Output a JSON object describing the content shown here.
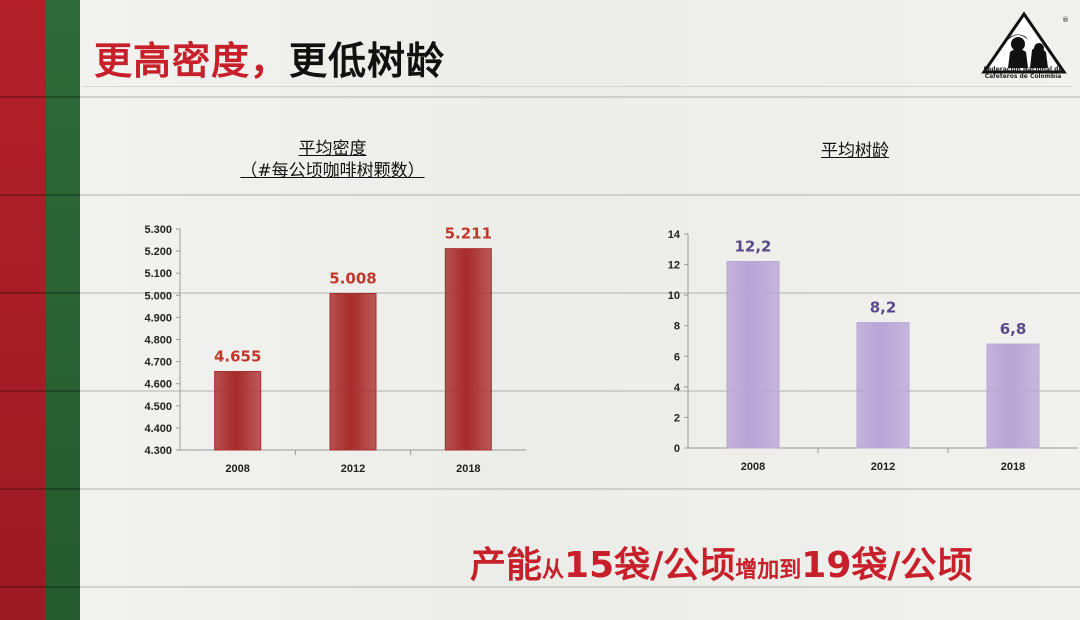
{
  "slide": {
    "title_red": "更高密度，",
    "title_black": "更低树龄",
    "logo_text_line1": "Federación Nacional de",
    "logo_text_line2": "Cafeteros de Colombia",
    "logo_mark": "®",
    "colors": {
      "flag_red": "#b3202a",
      "flag_green": "#2f6b3a",
      "title_red": "#c8202a"
    }
  },
  "chart_data": [
    {
      "type": "bar",
      "title_line1": "平均密度",
      "title_line2": "（#每公顷咖啡树颗数）",
      "categories": [
        "2008",
        "2012",
        "2018"
      ],
      "values": [
        4655,
        5008,
        5211
      ],
      "data_labels": [
        "4.655",
        "5.008",
        "5.211"
      ],
      "ylim": [
        4300,
        5300
      ],
      "ytick_values": [
        4300,
        4400,
        4500,
        4600,
        4700,
        4800,
        4900,
        5000,
        5100,
        5200,
        5300
      ],
      "ytick_labels": [
        "4.300",
        "4.400",
        "4.500",
        "4.600",
        "4.700",
        "4.800",
        "4.900",
        "5.000",
        "5.100",
        "5.200",
        "5.300"
      ],
      "grid": false,
      "bar_color": "#a82a2a",
      "label_color": "#c0392b"
    },
    {
      "type": "bar",
      "title_line1": "平均树龄",
      "categories": [
        "2008",
        "2012",
        "2018"
      ],
      "values": [
        12.2,
        8.2,
        6.8
      ],
      "data_labels": [
        "12,2",
        "8,2",
        "6,8"
      ],
      "ylim": [
        0,
        14
      ],
      "ytick_values": [
        0,
        2,
        4,
        6,
        8,
        10,
        12,
        14
      ],
      "ytick_labels": [
        "0",
        "2",
        "4",
        "6",
        "8",
        "10",
        "12",
        "14"
      ],
      "grid": false,
      "bar_color": "#b9a4d6",
      "label_color": "#5b4a8a"
    }
  ],
  "bottom": {
    "part1": "产能",
    "part2": "从",
    "part3": "15袋/公顷",
    "part4": "增加到",
    "part5": "19袋/公顷"
  }
}
